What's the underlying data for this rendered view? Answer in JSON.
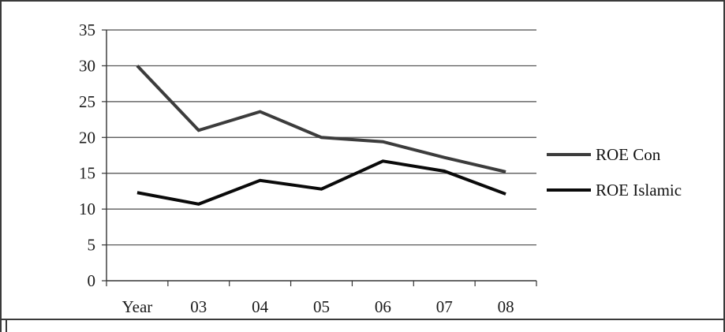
{
  "chart_data": {
    "type": "line",
    "categories": [
      "Year",
      "03",
      "04",
      "05",
      "06",
      "07",
      "08"
    ],
    "series": [
      {
        "name": "ROE Con",
        "values": [
          30,
          21,
          23.6,
          20,
          19.4,
          17.2,
          15.2
        ],
        "color": "#3c3c3c"
      },
      {
        "name": "ROE Islamic",
        "values": [
          12.3,
          10.7,
          14,
          12.8,
          16.7,
          15.3,
          12.1
        ],
        "color": "#0a0a0a"
      }
    ],
    "y_ticks": [
      "0",
      "5",
      "10",
      "15",
      "20",
      "25",
      "30",
      "35"
    ],
    "ylim": [
      0,
      35
    ],
    "title": "",
    "xlabel": "",
    "ylabel": "",
    "grid": true,
    "legend_position": "right"
  }
}
